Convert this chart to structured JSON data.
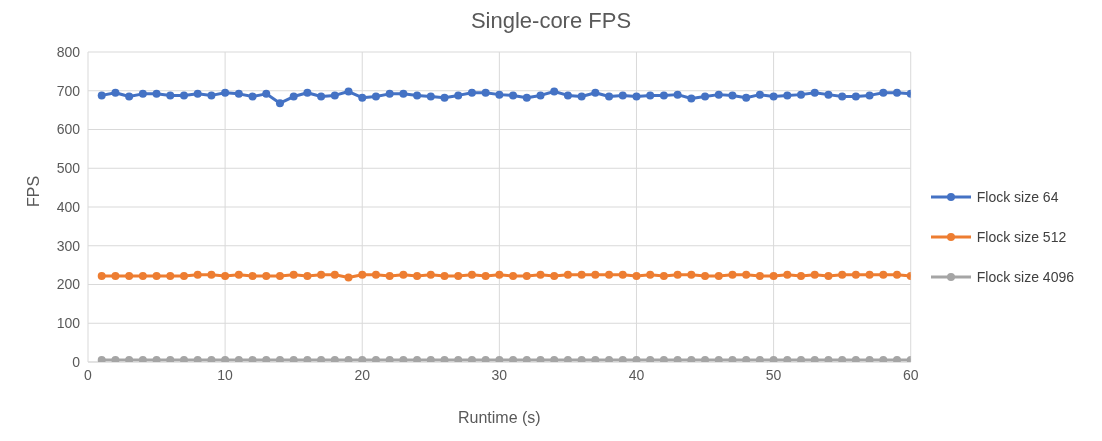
{
  "chart_data": {
    "type": "line",
    "title": "Single-core FPS",
    "xlabel": "Runtime (s)",
    "ylabel": "FPS",
    "x": [
      1,
      2,
      3,
      4,
      5,
      6,
      7,
      8,
      9,
      10,
      11,
      12,
      13,
      14,
      15,
      16,
      17,
      18,
      19,
      20,
      21,
      22,
      23,
      24,
      25,
      26,
      27,
      28,
      29,
      30,
      31,
      32,
      33,
      34,
      35,
      36,
      37,
      38,
      39,
      40,
      41,
      42,
      43,
      44,
      45,
      46,
      47,
      48,
      49,
      50,
      51,
      52,
      53,
      54,
      55,
      56,
      57,
      58,
      59,
      60
    ],
    "series": [
      {
        "name": "Flock size 64",
        "color": "#4472c4",
        "values": [
          688,
          695,
          685,
          692,
          692,
          688,
          688,
          692,
          688,
          695,
          692,
          685,
          692,
          668,
          685,
          695,
          685,
          688,
          698,
          682,
          685,
          692,
          692,
          688,
          685,
          682,
          688,
          695,
          695,
          690,
          688,
          682,
          688,
          698,
          688,
          685,
          695,
          685,
          688,
          685,
          688,
          688,
          690,
          680,
          685,
          690,
          688,
          682,
          690,
          685,
          688,
          690,
          695,
          690,
          685,
          685,
          688,
          695,
          695,
          692
        ]
      },
      {
        "name": "Flock size 512",
        "color": "#ed7d31",
        "values": [
          222,
          222,
          222,
          222,
          222,
          222,
          222,
          225,
          225,
          222,
          225,
          222,
          222,
          222,
          225,
          222,
          225,
          225,
          218,
          225,
          225,
          222,
          225,
          222,
          225,
          222,
          222,
          225,
          222,
          225,
          222,
          222,
          225,
          222,
          225,
          225,
          225,
          225,
          225,
          222,
          225,
          222,
          225,
          225,
          222,
          222,
          225,
          225,
          222,
          222,
          225,
          222,
          225,
          222,
          225,
          225,
          225,
          225,
          225,
          222
        ]
      },
      {
        "name": "Flock size 4096",
        "color": "#a5a5a5",
        "values": [
          5,
          5,
          5,
          5,
          5,
          5,
          5,
          5,
          5,
          5,
          5,
          5,
          5,
          5,
          5,
          5,
          5,
          5,
          5,
          5,
          5,
          5,
          5,
          5,
          5,
          5,
          5,
          5,
          5,
          5,
          5,
          5,
          5,
          5,
          5,
          5,
          5,
          5,
          5,
          5,
          5,
          5,
          5,
          5,
          5,
          5,
          5,
          5,
          5,
          5,
          5,
          5,
          5,
          5,
          5,
          5,
          5,
          5,
          5,
          5
        ]
      }
    ],
    "xlim": [
      0,
      60
    ],
    "xticks": [
      0,
      10,
      20,
      30,
      40,
      50,
      60
    ],
    "ylim": [
      0,
      800
    ],
    "yticks": [
      0,
      100,
      200,
      300,
      400,
      500,
      600,
      700,
      800
    ],
    "grid": true,
    "legend": "right",
    "marker": "circle",
    "line_style": "solid"
  }
}
